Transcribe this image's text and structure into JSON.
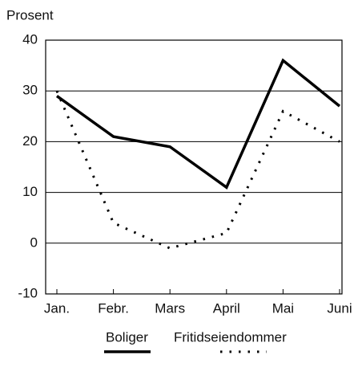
{
  "chart_data": {
    "type": "line",
    "ylabel": "Prosent",
    "categories": [
      "Jan.",
      "Febr.",
      "Mars",
      "April",
      "Mai",
      "Juni"
    ],
    "series": [
      {
        "name": "Boliger",
        "color": "#000000",
        "style": "solid",
        "values": [
          29,
          21,
          19,
          11,
          36,
          27
        ]
      },
      {
        "name": "Fritidseiendommer",
        "color": "#000000",
        "style": "dotted",
        "values": [
          30,
          4,
          -1,
          2,
          26,
          20
        ]
      }
    ],
    "ylim": [
      -10,
      40
    ],
    "yticks": [
      -10,
      0,
      10,
      20,
      30,
      40
    ],
    "grid": true,
    "legend": "bottom"
  }
}
